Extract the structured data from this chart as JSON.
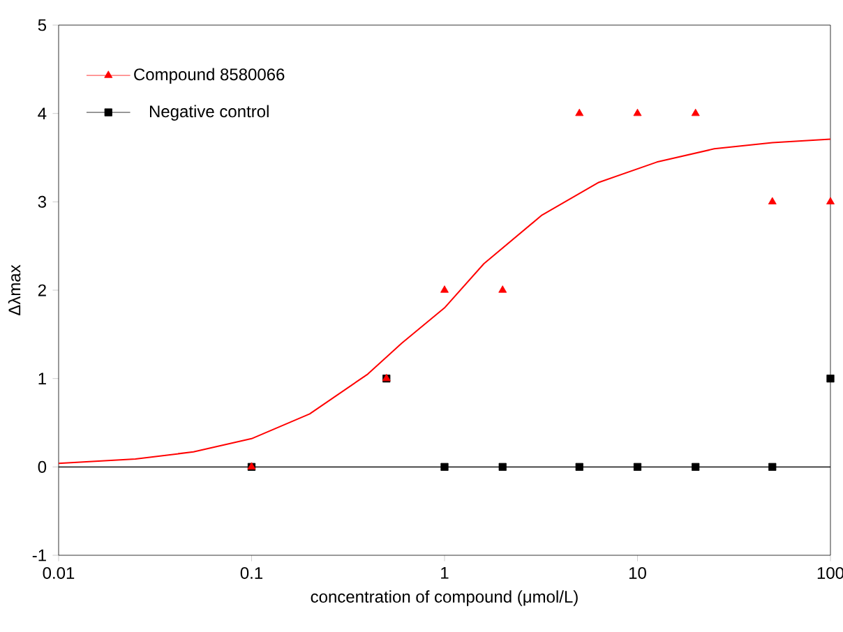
{
  "chart_data": {
    "type": "scatter",
    "xlabel": "concentration of compound (μmol/L)",
    "ylabel": "Δλmax",
    "log": "x",
    "xlim": [
      0.01,
      100
    ],
    "ylim": [
      -1,
      5
    ],
    "xticks": [
      0.01,
      0.1,
      1,
      10,
      100
    ],
    "yticks": [
      -1,
      0,
      1,
      2,
      3,
      4,
      5
    ],
    "legend": "top left",
    "grid": false,
    "series": [
      {
        "name": "Compound 8580066",
        "marker": "triangle",
        "color": "#ff0000",
        "x": [
          0.1,
          0.5,
          1,
          2,
          5,
          10,
          20,
          50,
          100
        ],
        "values": [
          0,
          1,
          2,
          2,
          4,
          4,
          4,
          3,
          3
        ]
      },
      {
        "type": "line",
        "marker": "none",
        "color": "#ff0000",
        "x": [
          0.01,
          0.025,
          0.05,
          0.1,
          0.2,
          0.4,
          0.6,
          1,
          1.6,
          3.2,
          6.3,
          12.6,
          25,
          50,
          100
        ],
        "values": [
          0.04,
          0.09,
          0.17,
          0.32,
          0.6,
          1.05,
          1.4,
          1.8,
          2.3,
          2.85,
          3.22,
          3.45,
          3.6,
          3.67,
          3.71
        ]
      },
      {
        "name": "Negative control",
        "marker": "square",
        "color": "#000000",
        "x": [
          0.1,
          0.5,
          1,
          2,
          5,
          10,
          20,
          50,
          100
        ],
        "values": [
          0,
          1,
          0,
          0,
          0,
          0,
          0,
          0,
          1
        ]
      }
    ],
    "ref_lines": [
      {
        "axis": "y",
        "value": 0,
        "color": "#000000"
      }
    ]
  }
}
